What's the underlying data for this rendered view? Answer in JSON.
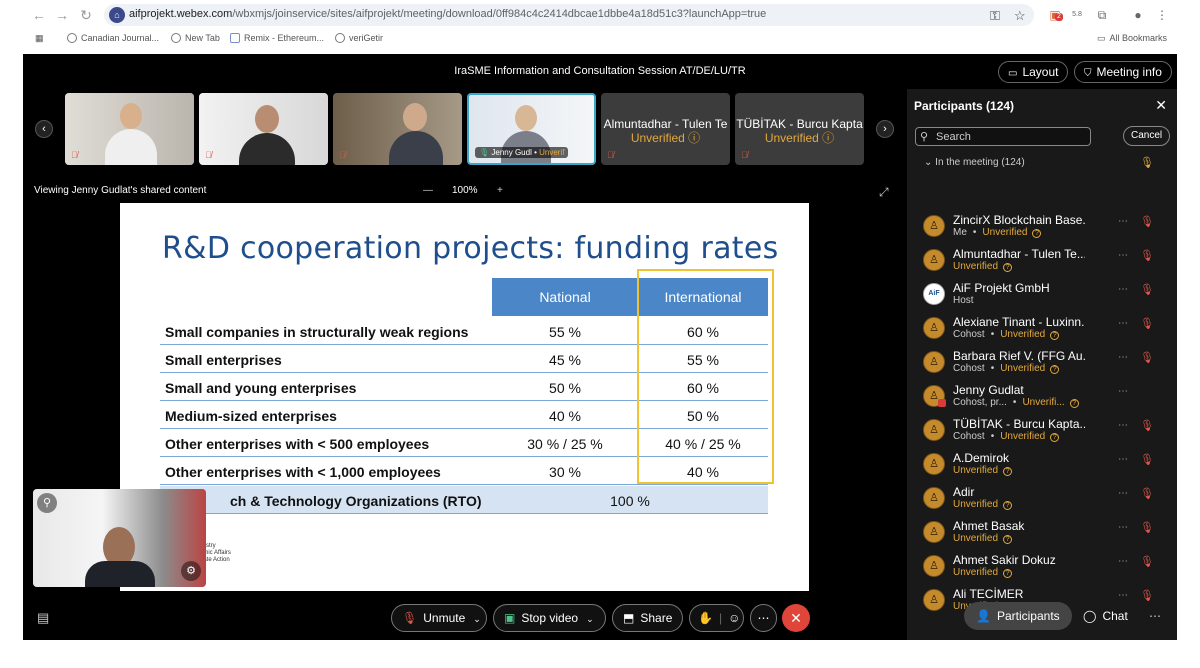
{
  "browser": {
    "url_main": "aifprojekt.webex.com",
    "url_path": "/wbxmjs/joinservice/sites/aifprojekt/meeting/download/0ff984c4c2414dbcae1dbbe4a18d51c3?launchApp=true",
    "bookmarks": [
      "Canadian Journal...",
      "New Tab",
      "Remix - Ethereum...",
      "veriGetir"
    ],
    "all_bookmarks": "All Bookmarks",
    "ext_badge": "2",
    "ext_small": "5.8"
  },
  "meeting": {
    "title": "IraSME Information and Consultation Session AT/DE/LU/TR",
    "layout_label": "Layout",
    "info_label": "Meeting info",
    "viewing_label": "Viewing Jenny Gudlat's shared content",
    "zoom": "100%"
  },
  "tiles": [
    {
      "name": ""
    },
    {
      "name": ""
    },
    {
      "name": ""
    },
    {
      "name": "Jenny Gudl",
      "status": "Unverif"
    },
    {
      "name": "Almuntadhar - Tulen Te",
      "status": "Unverified"
    },
    {
      "name": "TÜBİTAK - Burcu Kapta",
      "status": "Unverified"
    }
  ],
  "slide": {
    "title": "R&D cooperation projects: funding rates",
    "col_national": "National",
    "col_international": "International",
    "rows": [
      {
        "label": "Small companies in structurally weak regions",
        "national": "55 %",
        "international": "60 %"
      },
      {
        "label": "Small enterprises",
        "national": "45 %",
        "international": "55 %"
      },
      {
        "label": "Small and young enterprises",
        "national": "50 %",
        "international": "60 %"
      },
      {
        "label": "Medium-sized enterprises",
        "national": "40 %",
        "international": "50 %"
      },
      {
        "label": "Other enterprises with < 500 employees",
        "national": "30 % / 25 %",
        "international": "40 % / 25 %"
      },
      {
        "label": "Other enterprises with < 1,000 employees",
        "national": "30 %",
        "international": "40 %"
      },
      {
        "label": "ch & Technology Organizations (RTO)",
        "national": "100 %",
        "international": ""
      }
    ],
    "logo_text": "inistry\nomic Affairs\nnate Action"
  },
  "controls": {
    "unmute": "Unmute",
    "stop_video": "Stop video",
    "share": "Share"
  },
  "participants": {
    "title": "Participants (124)",
    "search_placeholder": "Search",
    "cancel": "Cancel",
    "section": "In the meeting (124)",
    "list": [
      {
        "name": "ZincirX Blockchain Base...",
        "role": "Me",
        "status": "Unverified"
      },
      {
        "name": "Almuntadhar - Tulen Te...",
        "role": "",
        "status": "Unverified"
      },
      {
        "name": "AiF Projekt GmbH",
        "role": "Host",
        "status": ""
      },
      {
        "name": "Alexiane Tinant - Luxinn...",
        "role": "Cohost",
        "status": "Unverified"
      },
      {
        "name": "Barbara Rief V. (FFG Au...",
        "role": "Cohost",
        "status": "Unverified"
      },
      {
        "name": "Jenny Gudlat",
        "role": "Cohost, pr...",
        "status": "Unverifi..."
      },
      {
        "name": "TÜBİTAK - Burcu Kapta...",
        "role": "Cohost",
        "status": "Unverified"
      },
      {
        "name": "A.Demirok",
        "role": "",
        "status": "Unverified"
      },
      {
        "name": "Adir",
        "role": "",
        "status": "Unverified"
      },
      {
        "name": "Ahmet Basak",
        "role": "",
        "status": "Unverified"
      },
      {
        "name": "Ahmet Sakir Dokuz",
        "role": "",
        "status": "Unverified"
      },
      {
        "name": "Ali TECİMER",
        "role": "",
        "status": "Unverified"
      }
    ],
    "footer_participants": "Participants",
    "footer_chat": "Chat"
  },
  "colors": {
    "accent_unverified": "#e3a93c",
    "muted_red": "#e0584a",
    "slide_blue": "#1f4e8c",
    "table_header": "#4a86c8",
    "highlight_box": "#f1c232"
  }
}
